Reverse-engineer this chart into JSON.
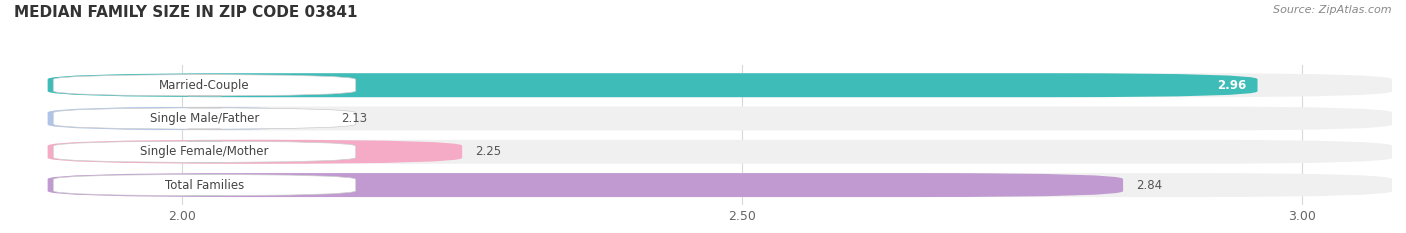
{
  "title": "MEDIAN FAMILY SIZE IN ZIP CODE 03841",
  "source": "Source: ZipAtlas.com",
  "categories": [
    "Married-Couple",
    "Single Male/Father",
    "Single Female/Mother",
    "Total Families"
  ],
  "values": [
    2.96,
    2.13,
    2.25,
    2.84
  ],
  "bar_colors": [
    "#3dbcb8",
    "#afc4e8",
    "#f5aac5",
    "#c09ad0"
  ],
  "background_color": "#ffffff",
  "xlim_min": 1.85,
  "xlim_max": 3.08,
  "xstart": 1.88,
  "xticks": [
    2.0,
    2.5,
    3.0
  ],
  "label_fontsize": 8.5,
  "value_fontsize": 8.5,
  "title_fontsize": 11,
  "source_fontsize": 8
}
